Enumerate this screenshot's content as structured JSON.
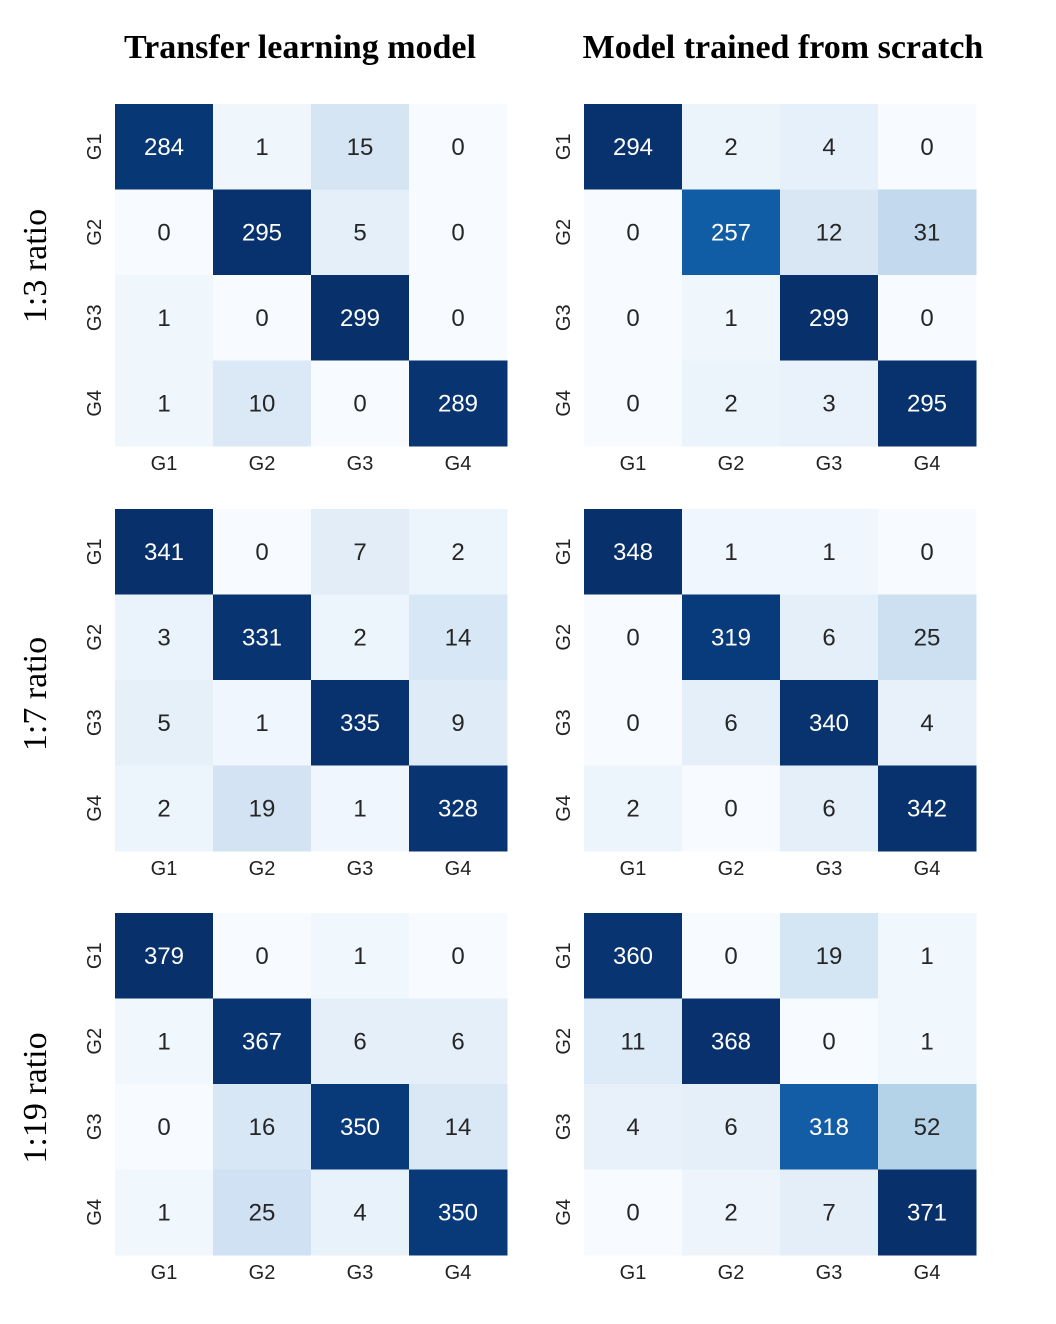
{
  "figure": {
    "column_titles": [
      "Transfer learning model",
      "Model trained from scratch"
    ],
    "row_titles": [
      "1:3 ratio",
      "1:7 ratio",
      "1:19 ratio"
    ]
  },
  "chart_data": [
    {
      "type": "heatmap",
      "panel": "1:3 ratio / Transfer learning model",
      "x_categories": [
        "G1",
        "G2",
        "G3",
        "G4"
      ],
      "y_categories": [
        "G1",
        "G2",
        "G3",
        "G4"
      ],
      "matrix": [
        [
          284,
          1,
          15,
          0
        ],
        [
          0,
          295,
          5,
          0
        ],
        [
          1,
          0,
          299,
          0
        ],
        [
          1,
          10,
          0,
          289
        ]
      ],
      "colormap": "Blues",
      "vmin": 0,
      "vmax": 299
    },
    {
      "type": "heatmap",
      "panel": "1:3 ratio / Model trained from scratch",
      "x_categories": [
        "G1",
        "G2",
        "G3",
        "G4"
      ],
      "y_categories": [
        "G1",
        "G2",
        "G3",
        "G4"
      ],
      "matrix": [
        [
          294,
          2,
          4,
          0
        ],
        [
          0,
          257,
          12,
          31
        ],
        [
          0,
          1,
          299,
          0
        ],
        [
          0,
          2,
          3,
          295
        ]
      ],
      "colormap": "Blues",
      "vmin": 0,
      "vmax": 299
    },
    {
      "type": "heatmap",
      "panel": "1:7 ratio / Transfer learning model",
      "x_categories": [
        "G1",
        "G2",
        "G3",
        "G4"
      ],
      "y_categories": [
        "G1",
        "G2",
        "G3",
        "G4"
      ],
      "matrix": [
        [
          341,
          0,
          7,
          2
        ],
        [
          3,
          331,
          2,
          14
        ],
        [
          5,
          1,
          335,
          9
        ],
        [
          2,
          19,
          1,
          328
        ]
      ],
      "colormap": "Blues",
      "vmin": 0,
      "vmax": 341
    },
    {
      "type": "heatmap",
      "panel": "1:7 ratio / Model trained from scratch",
      "x_categories": [
        "G1",
        "G2",
        "G3",
        "G4"
      ],
      "y_categories": [
        "G1",
        "G2",
        "G3",
        "G4"
      ],
      "matrix": [
        [
          348,
          1,
          1,
          0
        ],
        [
          0,
          319,
          6,
          25
        ],
        [
          0,
          6,
          340,
          4
        ],
        [
          2,
          0,
          6,
          342
        ]
      ],
      "colormap": "Blues",
      "vmin": 0,
      "vmax": 348
    },
    {
      "type": "heatmap",
      "panel": "1:19 ratio / Transfer learning model",
      "x_categories": [
        "G1",
        "G2",
        "G3",
        "G4"
      ],
      "y_categories": [
        "G1",
        "G2",
        "G3",
        "G4"
      ],
      "matrix": [
        [
          379,
          0,
          1,
          0
        ],
        [
          1,
          367,
          6,
          6
        ],
        [
          0,
          16,
          350,
          14
        ],
        [
          1,
          25,
          4,
          350
        ]
      ],
      "colormap": "Blues",
      "vmin": 0,
      "vmax": 379
    },
    {
      "type": "heatmap",
      "panel": "1:19 ratio / Model trained from scratch",
      "x_categories": [
        "G1",
        "G2",
        "G3",
        "G4"
      ],
      "y_categories": [
        "G1",
        "G2",
        "G3",
        "G4"
      ],
      "matrix": [
        [
          360,
          0,
          19,
          1
        ],
        [
          11,
          368,
          0,
          1
        ],
        [
          4,
          6,
          318,
          52
        ],
        [
          0,
          2,
          7,
          371
        ]
      ],
      "colormap": "Blues",
      "vmin": 0,
      "vmax": 371
    }
  ]
}
